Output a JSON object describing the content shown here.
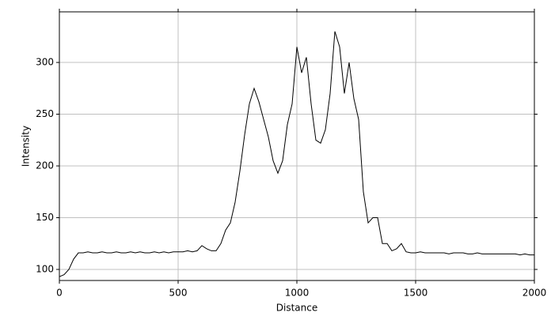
{
  "chart_data": {
    "type": "line",
    "x_label": "Distance",
    "y_label": "Intensity",
    "x": [
      0,
      20,
      40,
      60,
      80,
      100,
      120,
      140,
      160,
      180,
      200,
      220,
      240,
      260,
      280,
      300,
      320,
      340,
      360,
      380,
      400,
      420,
      440,
      460,
      480,
      500,
      520,
      540,
      560,
      580,
      600,
      620,
      640,
      660,
      680,
      700,
      720,
      740,
      760,
      780,
      800,
      820,
      840,
      860,
      880,
      900,
      920,
      940,
      960,
      980,
      1000,
      1020,
      1040,
      1060,
      1080,
      1100,
      1120,
      1140,
      1160,
      1180,
      1200,
      1220,
      1240,
      1260,
      1280,
      1300,
      1320,
      1340,
      1360,
      1380,
      1400,
      1420,
      1440,
      1460,
      1480,
      1500,
      1520,
      1540,
      1560,
      1580,
      1600,
      1620,
      1640,
      1660,
      1680,
      1700,
      1720,
      1740,
      1760,
      1780,
      1800,
      1820,
      1840,
      1860,
      1880,
      1900,
      1920,
      1940,
      1960,
      1980,
      2000
    ],
    "values": [
      93,
      95,
      100,
      110,
      116,
      116,
      117,
      116,
      116,
      117,
      116,
      116,
      117,
      116,
      116,
      117,
      116,
      117,
      116,
      116,
      117,
      116,
      117,
      116,
      117,
      117,
      117,
      118,
      117,
      118,
      123,
      120,
      118,
      118,
      125,
      138,
      145,
      165,
      195,
      230,
      260,
      275,
      262,
      245,
      228,
      205,
      193,
      205,
      240,
      260,
      315,
      290,
      305,
      260,
      225,
      222,
      235,
      270,
      330,
      315,
      270,
      300,
      265,
      245,
      175,
      145,
      150,
      150,
      125,
      125,
      118,
      120,
      125,
      117,
      116,
      116,
      117,
      116,
      116,
      116,
      116,
      116,
      115,
      116,
      116,
      116,
      115,
      115,
      116,
      115,
      115,
      115,
      115,
      115,
      115,
      115,
      115,
      114,
      115,
      114,
      114
    ],
    "color": "#000000",
    "xlim": [
      0,
      2000
    ],
    "ylim": [
      89.3,
      348.9
    ],
    "xticks": [
      0,
      500,
      1000,
      1500,
      2000
    ],
    "yticks": [
      100,
      150,
      200,
      250,
      300
    ],
    "grid": true
  }
}
